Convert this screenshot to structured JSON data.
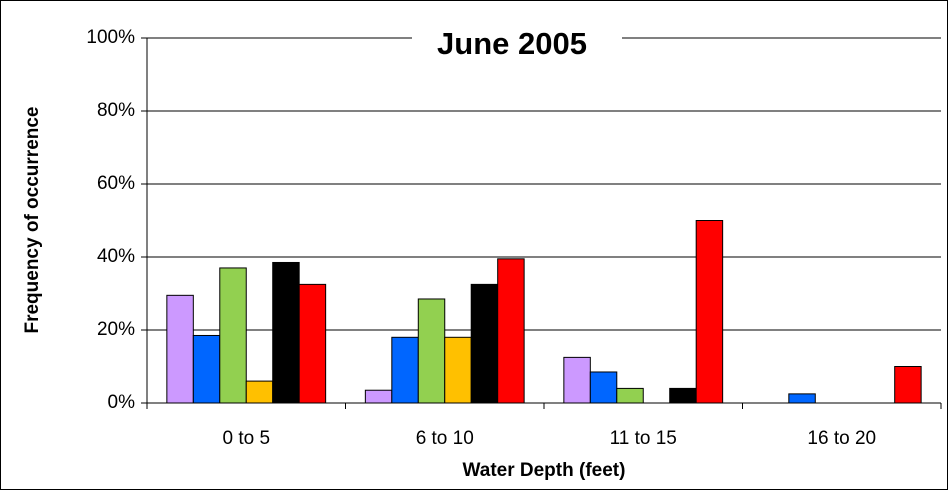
{
  "chart_data": {
    "type": "bar",
    "title": "June 2005",
    "x_label": "Water Depth (feet)",
    "y_label": "Frequency of occurrence",
    "categories": [
      "0 to 5",
      "6 to 10",
      "11 to 15",
      "16 to 20"
    ],
    "series": [
      {
        "color": "#cc99ff",
        "values": [
          29.5,
          3.5,
          12.5,
          0
        ]
      },
      {
        "color": "#0066ff",
        "values": [
          18.5,
          18,
          8.5,
          2.5
        ]
      },
      {
        "color": "#92d050",
        "values": [
          37,
          28.5,
          4,
          0
        ]
      },
      {
        "color": "#ffc000",
        "values": [
          6,
          18,
          0,
          0
        ]
      },
      {
        "color": "#000000",
        "values": [
          38.5,
          32.5,
          4,
          0
        ]
      },
      {
        "color": "#ff0000",
        "values": [
          32.5,
          39.5,
          50,
          10
        ]
      }
    ],
    "ylim": [
      0,
      100
    ],
    "yticks": [
      {
        "value": 0,
        "label": "0%"
      },
      {
        "value": 20,
        "label": "20%"
      },
      {
        "value": 40,
        "label": "40%"
      },
      {
        "value": 60,
        "label": "60%"
      },
      {
        "value": 80,
        "label": "80%"
      },
      {
        "value": 100,
        "label": "100%"
      }
    ],
    "grid": true
  }
}
